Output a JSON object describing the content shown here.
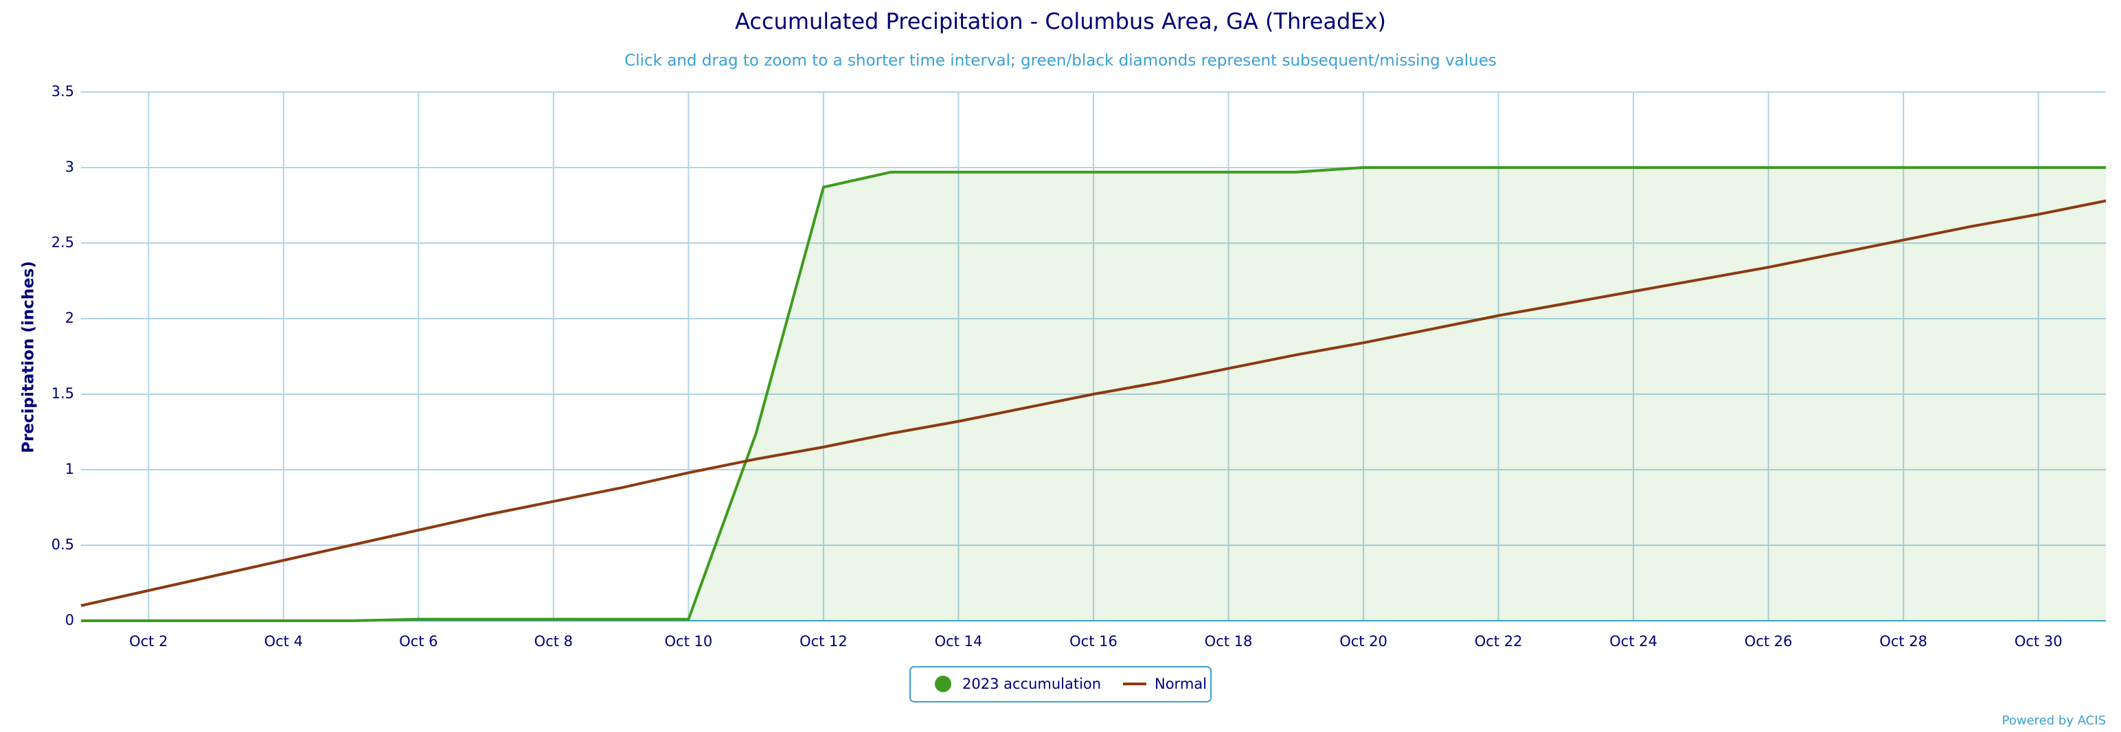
{
  "chart_data": {
    "type": "line",
    "title": "Accumulated Precipitation - Columbus Area, GA (ThreadEx)",
    "subtitle": "Click and drag to zoom to a shorter time interval; green/black diamonds represent subsequent/missing values",
    "y_label": "Precipitation (inches)",
    "credit": "Powered by ACIS",
    "categories": [
      null,
      "Oct 2",
      null,
      "Oct 4",
      null,
      "Oct 6",
      null,
      "Oct 8",
      null,
      "Oct 10",
      null,
      "Oct 12",
      null,
      "Oct 14",
      null,
      "Oct 16",
      null,
      "Oct 18",
      null,
      "Oct 20",
      null,
      "Oct 22",
      null,
      "Oct 24",
      null,
      "Oct 26",
      null,
      "Oct 28",
      null,
      "Oct 30",
      null
    ],
    "series": [
      {
        "name": "2023 accumulation",
        "color": "#3f9b1f",
        "fill": "rgba(63,155,31,0.1)",
        "values": [
          0,
          0,
          0,
          0,
          0,
          0.01,
          0.01,
          0.01,
          0.01,
          0.01,
          1.24,
          2.87,
          2.97,
          2.97,
          2.97,
          2.97,
          2.97,
          2.97,
          2.97,
          3.0,
          3.0,
          3.0,
          3.0,
          3.0,
          3.0,
          3.0,
          3.0,
          3.0,
          3.0,
          3.0,
          3.0
        ]
      },
      {
        "name": "Normal",
        "color": "#8b3a12",
        "values": [
          0.1,
          0.2,
          0.3,
          0.4,
          0.5,
          0.6,
          0.7,
          0.79,
          0.88,
          0.98,
          1.07,
          1.15,
          1.24,
          1.32,
          1.41,
          1.5,
          1.58,
          1.67,
          1.76,
          1.84,
          1.93,
          2.02,
          2.1,
          2.18,
          2.26,
          2.34,
          2.43,
          2.52,
          2.61,
          2.69,
          2.78
        ]
      }
    ],
    "ylim": [
      0,
      3.5
    ],
    "yticks": [
      0,
      0.5,
      1,
      1.5,
      2,
      2.5,
      3,
      3.5
    ],
    "grid": true
  }
}
